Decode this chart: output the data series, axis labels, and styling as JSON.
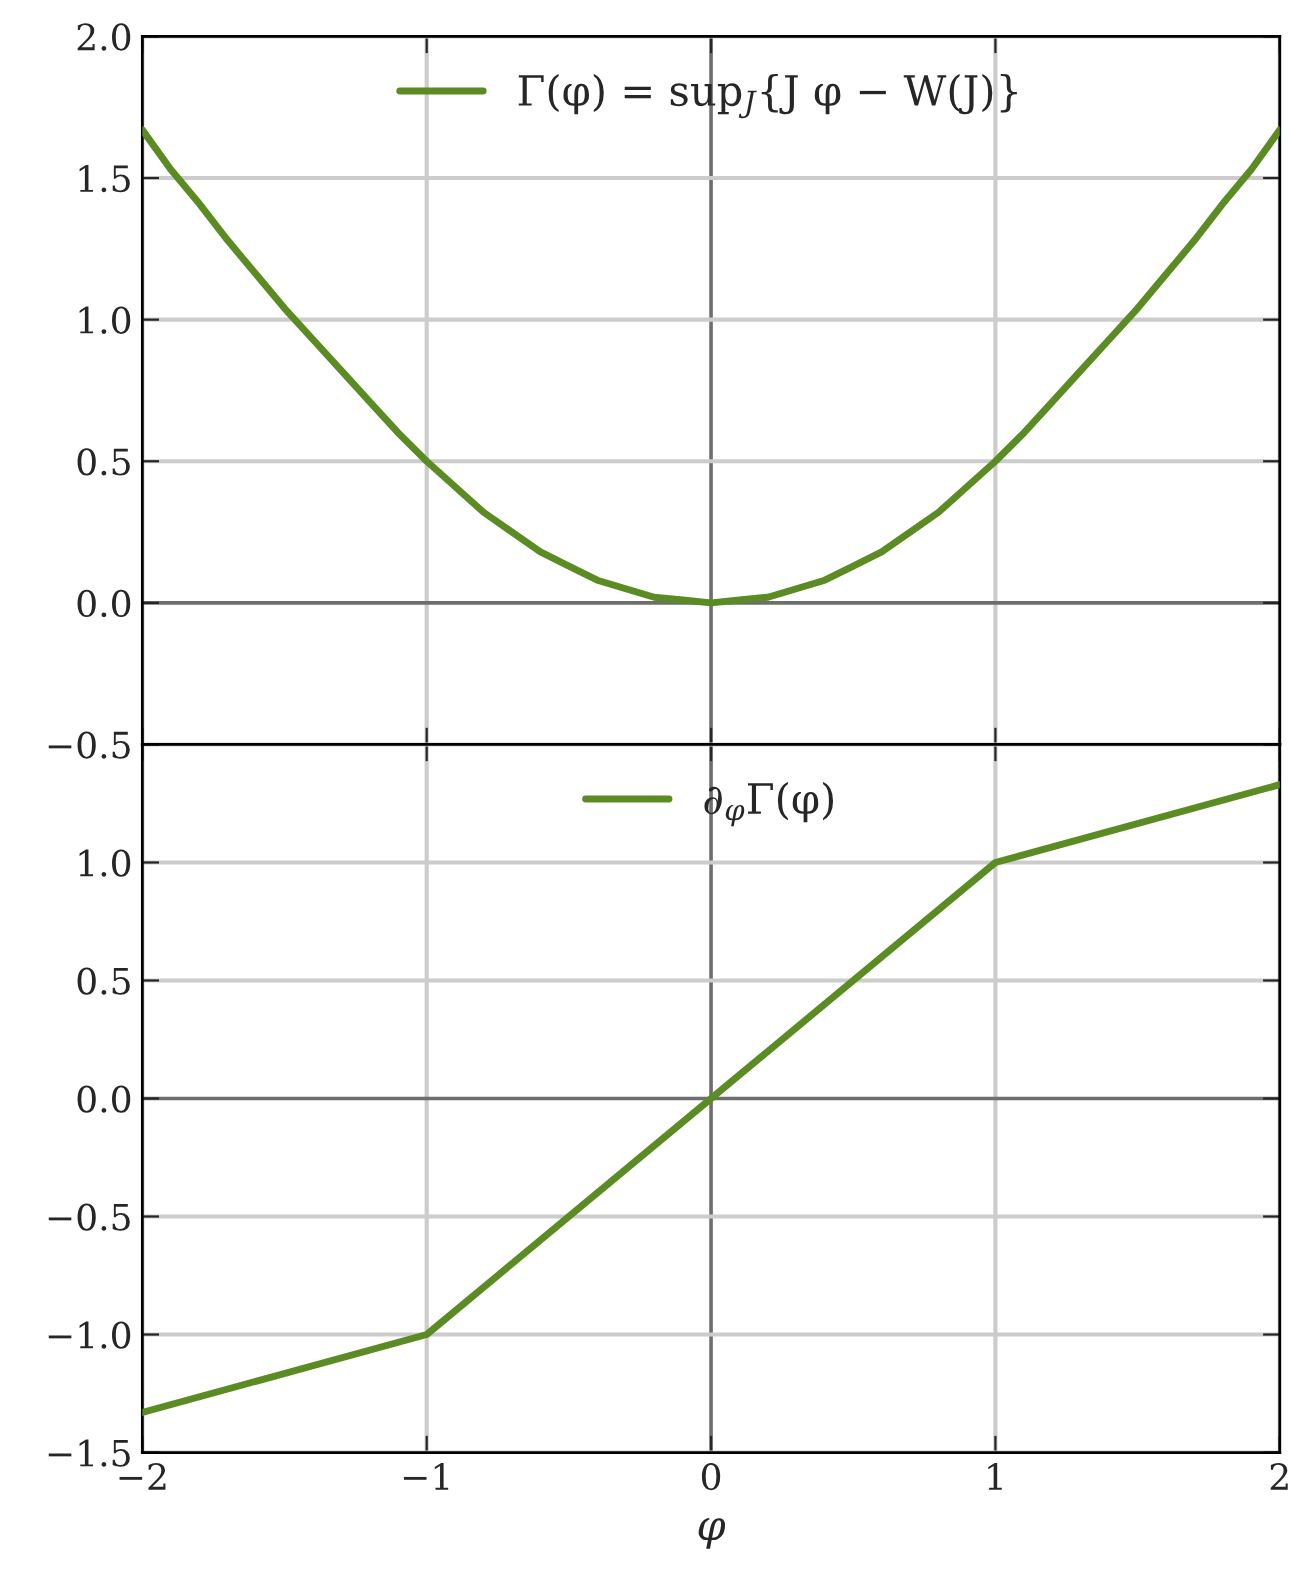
{
  "chart_data": [
    {
      "type": "line",
      "x": [
        -2,
        -1.9,
        -1.8,
        -1.7,
        -1.6,
        -1.5,
        -1.4,
        -1.3,
        -1.2,
        -1.1,
        -1,
        -0.9,
        -0.8,
        -0.7,
        -0.6,
        -0.5,
        -0.4,
        -0.3,
        -0.2,
        -0.1,
        0,
        0.1,
        0.2,
        0.3,
        0.4,
        0.5,
        0.6,
        0.7,
        0.8,
        0.9,
        1,
        1.1,
        1.2,
        1.3,
        1.4,
        1.5,
        1.6,
        1.7,
        1.8,
        1.9,
        2
      ],
      "series": [
        {
          "name": "Γ(φ) = sup$_{J}${J φ − W(J)}",
          "color": "#5b8c23",
          "values": [
            1.67,
            1.53,
            1.41,
            1.28,
            1.16,
            1.04,
            0.93,
            0.82,
            0.71,
            0.6,
            0.5,
            0.41,
            0.32,
            0.25,
            0.18,
            0.13,
            0.08,
            0.05,
            0.02,
            0.01,
            0,
            0.01,
            0.02,
            0.05,
            0.08,
            0.13,
            0.18,
            0.25,
            0.32,
            0.41,
            0.5,
            0.6,
            0.71,
            0.82,
            0.93,
            1.04,
            1.16,
            1.28,
            1.41,
            1.53,
            1.67
          ]
        }
      ],
      "xlim": [
        -2,
        2
      ],
      "xticks": [
        {
          "value": -2,
          "label": null
        },
        {
          "value": -1,
          "label": null
        },
        {
          "value": 0,
          "label": null
        },
        {
          "value": 1,
          "label": null
        },
        {
          "value": 2,
          "label": null
        }
      ],
      "ylim": [
        -0.5,
        2.0
      ],
      "yticks": [
        {
          "value": -0.5,
          "label": "−0.5"
        },
        {
          "value": 0,
          "label": "0.0"
        },
        {
          "value": 0.5,
          "label": "0.5"
        },
        {
          "value": 1,
          "label": "1.0"
        },
        {
          "value": 1.5,
          "label": "1.5"
        },
        {
          "value": 2,
          "label": "2.0"
        }
      ],
      "tick_labels": "y",
      "grid": true,
      "legend": "top",
      "line_style": "solid",
      "marker": "none"
    },
    {
      "type": "line",
      "x": [
        -2,
        -1,
        0,
        1,
        2
      ],
      "series": [
        {
          "name": "∂$_{φ}$Γ(φ)",
          "color": "#5b8c23",
          "values": [
            -1.33,
            -1,
            0,
            1,
            1.33
          ]
        }
      ],
      "xlabel": "φ",
      "xlim": [
        -2,
        2
      ],
      "xticks": [
        {
          "value": -2,
          "label": "−2"
        },
        {
          "value": -1,
          "label": "−1"
        },
        {
          "value": 0,
          "label": "0"
        },
        {
          "value": 1,
          "label": "1"
        },
        {
          "value": 2,
          "label": "2"
        }
      ],
      "ylim": [
        -1.5,
        1.5
      ],
      "yticks": [
        {
          "value": -1.5,
          "label": "−1.5"
        },
        {
          "value": -1,
          "label": "−1.0"
        },
        {
          "value": -0.5,
          "label": "−0.5"
        },
        {
          "value": 0,
          "label": "0.0"
        },
        {
          "value": 0.5,
          "label": "0.5"
        },
        {
          "value": 1,
          "label": "1.0"
        },
        {
          "value": 1.5,
          "label": null
        }
      ],
      "grid": true,
      "legend": "top",
      "line_style": "solid",
      "marker": "none"
    }
  ]
}
